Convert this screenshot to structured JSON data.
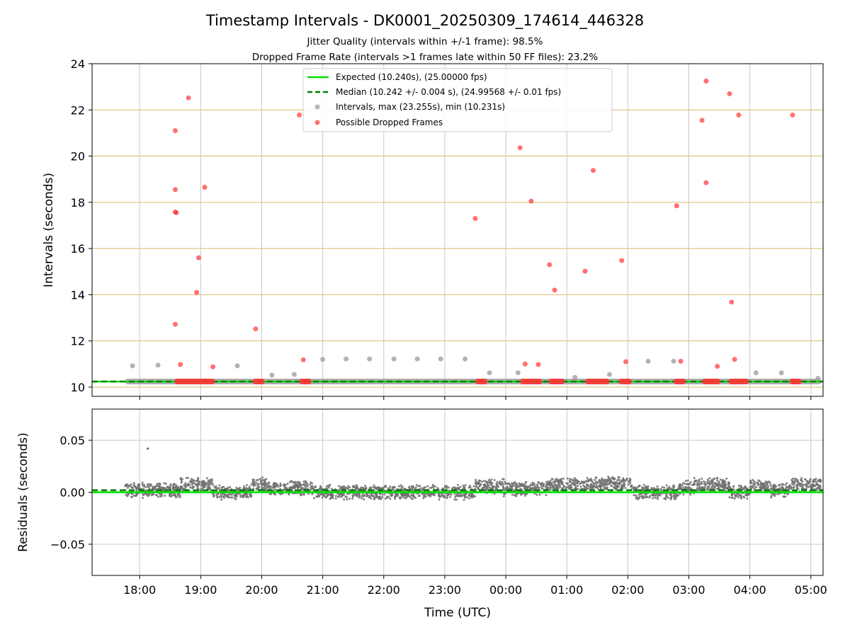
{
  "title": "Timestamp Intervals - DK0001_20250309_174614_446328",
  "subtitle_lines": [
    "Jitter Quality (intervals within +/-1 frame): 98.5%",
    "Dropped Frame Rate (intervals >1 frames late within 50 FF files): 23.2%"
  ],
  "colors": {
    "expected": "#00e000",
    "median": "#008000",
    "intervals": "#999999",
    "dropped": "#ff3333",
    "residuals": "#707070",
    "hgrid_top": "#d9b96a",
    "grid": "#c8c8c8",
    "data_band": "#555555"
  },
  "chart_data": [
    {
      "type": "scatter",
      "panel": "intervals",
      "ylabel": "Intervals (seconds)",
      "ylim": [
        9.6,
        24
      ],
      "yticks": [
        "10",
        "12",
        "14",
        "16",
        "18",
        "20",
        "22",
        "24"
      ],
      "x_range_hours": [
        17.22,
        29.2
      ],
      "x_ticks": [
        "18:00",
        "19:00",
        "20:00",
        "21:00",
        "22:00",
        "23:00",
        "00:00",
        "01:00",
        "02:00",
        "03:00",
        "04:00",
        "05:00"
      ],
      "grid": true,
      "legend_placement": "top-center",
      "legend": [
        "Expected (10.240s), (25.00000 fps)",
        "Median (10.242 +/- 0.004 s), (24.99568 +/- 0.01 fps)",
        "Intervals, max (23.255s), min (10.231s)",
        "Possible Dropped Frames"
      ],
      "expected": 10.24,
      "median": 10.242,
      "data_x_start": "17:46",
      "data_x_end": "05:10",
      "intervals_points": [
        [
          "17:53",
          10.92
        ],
        [
          "18:18",
          10.95
        ],
        [
          "19:36",
          10.92
        ],
        [
          "20:10",
          10.52
        ],
        [
          "20:32",
          10.55
        ],
        [
          "21:00",
          11.2
        ],
        [
          "21:23",
          11.22
        ],
        [
          "21:46",
          11.22
        ],
        [
          "22:10",
          11.22
        ],
        [
          "22:33",
          11.22
        ],
        [
          "22:56",
          11.22
        ],
        [
          "23:20",
          11.22
        ],
        [
          "23:44",
          10.62
        ],
        [
          "00:12",
          10.62
        ],
        [
          "01:08",
          10.42
        ],
        [
          "01:42",
          10.55
        ],
        [
          "02:20",
          11.12
        ],
        [
          "02:45",
          11.12
        ],
        [
          "04:06",
          10.62
        ],
        [
          "04:31",
          10.62
        ],
        [
          "05:07",
          10.38
        ]
      ],
      "dropped_points": [
        [
          "18:35",
          21.1
        ],
        [
          "18:35",
          18.55
        ],
        [
          "18:35",
          17.58
        ],
        [
          "18:36",
          17.55
        ],
        [
          "18:35",
          12.72
        ],
        [
          "18:40",
          10.98
        ],
        [
          "18:48",
          22.52
        ],
        [
          "18:56",
          14.1
        ],
        [
          "18:58",
          15.6
        ],
        [
          "19:04",
          18.65
        ],
        [
          "19:12",
          10.88
        ],
        [
          "19:54",
          12.52
        ],
        [
          "20:37",
          21.78
        ],
        [
          "20:41",
          11.18
        ],
        [
          "23:30",
          17.3
        ],
        [
          "00:14",
          20.36
        ],
        [
          "00:19",
          11.0
        ],
        [
          "00:25",
          18.05
        ],
        [
          "00:32",
          10.98
        ],
        [
          "00:43",
          15.3
        ],
        [
          "00:48",
          14.2
        ],
        [
          "01:18",
          15.02
        ],
        [
          "01:26",
          19.38
        ],
        [
          "01:54",
          15.48
        ],
        [
          "01:58",
          11.1
        ],
        [
          "02:48",
          17.85
        ],
        [
          "02:52",
          11.12
        ],
        [
          "03:13",
          21.55
        ],
        [
          "03:17",
          23.25
        ],
        [
          "03:17",
          18.85
        ],
        [
          "03:28",
          10.9
        ],
        [
          "03:40",
          22.7
        ],
        [
          "03:42",
          13.68
        ],
        [
          "03:45",
          11.2
        ],
        [
          "03:49",
          21.78
        ],
        [
          "04:42",
          21.78
        ]
      ],
      "dropped_clusters": [
        [
          "18:34",
          "19:14"
        ],
        [
          "19:51",
          "20:03"
        ],
        [
          "20:37",
          "20:49"
        ],
        [
          "23:30",
          "23:42"
        ],
        [
          "00:14",
          "00:36"
        ],
        [
          "00:42",
          "00:58"
        ],
        [
          "01:18",
          "01:42"
        ],
        [
          "01:51",
          "02:04"
        ],
        [
          "02:45",
          "02:57"
        ],
        [
          "03:13",
          "03:31"
        ],
        [
          "03:39",
          "03:59"
        ],
        [
          "04:39",
          "04:51"
        ]
      ]
    },
    {
      "type": "scatter",
      "panel": "residuals",
      "ylabel": "Residuals (seconds)",
      "xlabel": "Time (UTC)",
      "ylim": [
        -0.08,
        0.08
      ],
      "yticks": [
        "0.05",
        "0.00",
        "−0.05"
      ],
      "grid": true,
      "expected_residual": 0.0,
      "median_residual": 0.002,
      "outliers": [
        [
          "18:08",
          0.042
        ]
      ],
      "band_segments": [
        [
          "17:46",
          "18:40",
          0.002
        ],
        [
          "18:40",
          "19:12",
          0.007
        ],
        [
          "19:12",
          "19:50",
          0.0
        ],
        [
          "19:50",
          "20:05",
          0.007
        ],
        [
          "20:05",
          "20:50",
          0.004
        ],
        [
          "20:50",
          "23:30",
          0.0
        ],
        [
          "23:30",
          "23:58",
          0.006
        ],
        [
          "23:58",
          "00:40",
          0.003
        ],
        [
          "00:40",
          "01:20",
          0.007
        ],
        [
          "01:20",
          "02:05",
          0.008
        ],
        [
          "02:05",
          "02:50",
          0.0
        ],
        [
          "02:50",
          "03:05",
          0.004
        ],
        [
          "03:05",
          "03:40",
          0.007
        ],
        [
          "03:40",
          "04:00",
          0.0
        ],
        [
          "04:00",
          "04:20",
          0.006
        ],
        [
          "04:20",
          "04:40",
          0.002
        ],
        [
          "04:40",
          "05:10",
          0.007
        ]
      ]
    }
  ]
}
